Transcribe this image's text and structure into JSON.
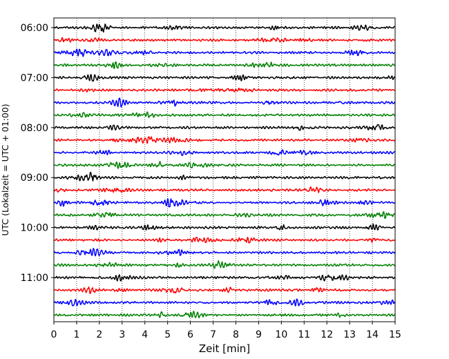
{
  "chart_data": {
    "type": "line",
    "title": "",
    "xlabel": "Zeit  [min]",
    "ylabel": "UTC (Lokalzeit = UTC + 01:00)",
    "xlim": [
      0,
      15
    ],
    "x_ticks": [
      0,
      1,
      2,
      3,
      4,
      5,
      6,
      7,
      8,
      9,
      10,
      11,
      12,
      13,
      14,
      15
    ],
    "x_tick_labels": [
      "0",
      "1",
      "2",
      "3",
      "4",
      "5",
      "6",
      "7",
      "8",
      "9",
      "10",
      "11",
      "12",
      "13",
      "14",
      "15"
    ],
    "y_ticks": [
      "06:00",
      "07:00",
      "08:00",
      "09:00",
      "10:00",
      "11:00"
    ],
    "grid": "vertical dotted lines at every minute",
    "legend": "none",
    "trace_interval_minutes": 15,
    "traces_per_hour": 4,
    "color_cycle": [
      "#000000",
      "#ff0000",
      "#0000ff",
      "#008000"
    ],
    "series": [
      {
        "start": "06:00",
        "color": "#000000"
      },
      {
        "start": "06:15",
        "color": "#ff0000"
      },
      {
        "start": "06:30",
        "color": "#0000ff"
      },
      {
        "start": "06:45",
        "color": "#008000"
      },
      {
        "start": "07:00",
        "color": "#000000"
      },
      {
        "start": "07:15",
        "color": "#ff0000"
      },
      {
        "start": "07:30",
        "color": "#0000ff"
      },
      {
        "start": "07:45",
        "color": "#008000"
      },
      {
        "start": "08:00",
        "color": "#000000"
      },
      {
        "start": "08:15",
        "color": "#ff0000"
      },
      {
        "start": "08:30",
        "color": "#0000ff"
      },
      {
        "start": "08:45",
        "color": "#008000"
      },
      {
        "start": "09:00",
        "color": "#000000"
      },
      {
        "start": "09:15",
        "color": "#ff0000"
      },
      {
        "start": "09:30",
        "color": "#0000ff"
      },
      {
        "start": "09:45",
        "color": "#008000"
      },
      {
        "start": "10:00",
        "color": "#000000"
      },
      {
        "start": "10:15",
        "color": "#ff0000"
      },
      {
        "start": "10:30",
        "color": "#0000ff"
      },
      {
        "start": "10:45",
        "color": "#008000"
      },
      {
        "start": "11:00",
        "color": "#000000"
      },
      {
        "start": "11:15",
        "color": "#ff0000"
      },
      {
        "start": "11:30",
        "color": "#0000ff"
      },
      {
        "start": "11:45",
        "color": "#008000"
      }
    ]
  }
}
